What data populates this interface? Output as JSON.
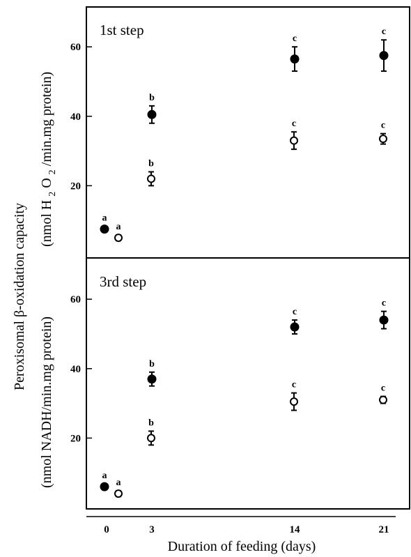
{
  "figure": {
    "ylabel_line1": "Peroxisomal β-oxidation capacity",
    "xlabel": "Duration of feeding (days)",
    "x_ticks": [
      "0",
      "3",
      "14",
      "21"
    ]
  },
  "chart_data": [
    {
      "type": "scatter",
      "title": "1st step",
      "ylabel_parts": [
        "(nmol H",
        "2",
        "O",
        "2",
        "/min.mg protein)"
      ],
      "xlabel": "Duration of feeding (days)",
      "ylim": [
        0,
        70
      ],
      "y_ticks": [
        20,
        40,
        60
      ],
      "x_ticks": [
        0,
        3,
        14,
        21
      ],
      "series": [
        {
          "marker": "filled",
          "points": [
            {
              "x": 0,
              "y": 7.5,
              "err": 0.8,
              "letter": "a"
            },
            {
              "x": 3,
              "y": 40.5,
              "err": 2.5,
              "letter": "b"
            },
            {
              "x": 14,
              "y": 56.5,
              "err": 3.5,
              "letter": "c"
            },
            {
              "x": 21,
              "y": 57.5,
              "err": 4.5,
              "letter": "c"
            }
          ]
        },
        {
          "marker": "open",
          "points": [
            {
              "x": 0,
              "y": 5.0,
              "err": 0.8,
              "letter": "a"
            },
            {
              "x": 3,
              "y": 22.0,
              "err": 2.0,
              "letter": "b"
            },
            {
              "x": 14,
              "y": 33.0,
              "err": 2.5,
              "letter": "c"
            },
            {
              "x": 21,
              "y": 33.5,
              "err": 1.5,
              "letter": "c"
            }
          ]
        }
      ]
    },
    {
      "type": "scatter",
      "title": "3rd step",
      "ylabel_parts": [
        "(nmol NADH/min.mg protein)"
      ],
      "xlabel": "Duration of feeding (days)",
      "ylim": [
        0,
        70
      ],
      "y_ticks": [
        20,
        40,
        60
      ],
      "x_ticks": [
        0,
        3,
        14,
        21
      ],
      "series": [
        {
          "marker": "filled",
          "points": [
            {
              "x": 0,
              "y": 6.0,
              "err": 0.8,
              "letter": "a"
            },
            {
              "x": 3,
              "y": 37.0,
              "err": 2.0,
              "letter": "b"
            },
            {
              "x": 14,
              "y": 52.0,
              "err": 2.0,
              "letter": "c"
            },
            {
              "x": 21,
              "y": 54.0,
              "err": 2.5,
              "letter": "c"
            }
          ]
        },
        {
          "marker": "open",
          "points": [
            {
              "x": 0,
              "y": 4.0,
              "err": 0.8,
              "letter": "a"
            },
            {
              "x": 3,
              "y": 20.0,
              "err": 2.0,
              "letter": "b"
            },
            {
              "x": 14,
              "y": 30.5,
              "err": 2.5,
              "letter": "c"
            },
            {
              "x": 21,
              "y": 31.0,
              "err": 1.0,
              "letter": "c"
            }
          ]
        }
      ]
    }
  ]
}
